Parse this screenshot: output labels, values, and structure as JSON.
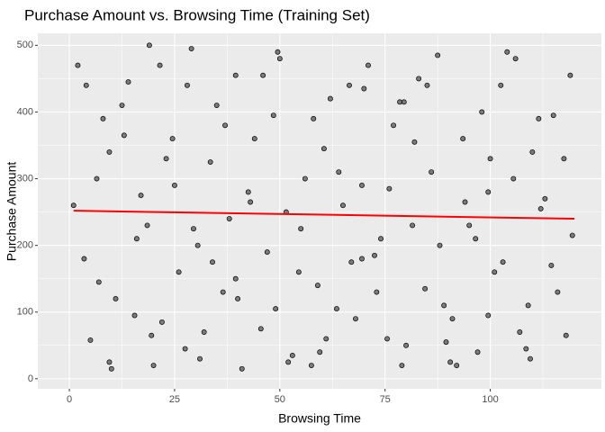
{
  "chart_data": {
    "type": "scatter",
    "title": "Purchase Amount vs. Browsing Time (Training Set)",
    "x_label": "Browsing Time",
    "y_label": "Purchase Amount",
    "xlim": [
      -7.5,
      126.4
    ],
    "ylim": [
      -15,
      518
    ],
    "xticks": [
      0,
      25,
      50,
      75,
      100
    ],
    "yticks": [
      0,
      100,
      200,
      300,
      400,
      500
    ],
    "grid": true,
    "series": [
      {
        "color": "#555555",
        "x": [
          2,
          5,
          8,
          11,
          14,
          17,
          20,
          23,
          26,
          29,
          32,
          35,
          38,
          41,
          44,
          47,
          50,
          53,
          56,
          59,
          62,
          65,
          68,
          71,
          74,
          77,
          80,
          83,
          86,
          89,
          92,
          95,
          98,
          101,
          104,
          107,
          110,
          113,
          116,
          119
        ],
        "values": [
          470,
          58,
          390,
          120,
          445,
          275,
          20,
          330,
          160,
          495,
          70,
          410,
          240,
          15,
          360,
          190,
          480,
          35,
          300,
          140,
          420,
          260,
          90,
          470,
          210,
          380,
          50,
          450,
          310,
          110,
          20,
          230,
          400,
          160,
          490,
          70,
          340,
          270,
          130,
          455
        ]
      },
      {
        "color": "#555555",
        "x": [
          3.5,
          6.5,
          9.5,
          12.5,
          15.5,
          18.5,
          21.5,
          24.5,
          27.5,
          30.5,
          33.5,
          36.5,
          39.5,
          42.5,
          45.5,
          48.5,
          51.5,
          54.5,
          57.5,
          60.5,
          63.5,
          66.5,
          69.5,
          72.5,
          75.5,
          78.5,
          81.5,
          84.5,
          87.5,
          90.5,
          93.5,
          96.5,
          99.5,
          102.5,
          105.5,
          108.5,
          111.5,
          114.5,
          117.5
        ],
        "values": [
          180,
          300,
          25,
          410,
          95,
          230,
          470,
          360,
          45,
          200,
          325,
          130,
          455,
          280,
          75,
          395,
          250,
          160,
          20,
          345,
          105,
          440,
          290,
          185,
          60,
          415,
          230,
          135,
          485,
          25,
          360,
          210,
          95,
          440,
          300,
          45,
          390,
          170,
          330
        ]
      },
      {
        "color": "#555555",
        "x": [
          1,
          4,
          7,
          10,
          13,
          16,
          19,
          22,
          25,
          28,
          31,
          34,
          37,
          40,
          43,
          46,
          49,
          52,
          55,
          58,
          61,
          64,
          67,
          70,
          73,
          76,
          79,
          82,
          85,
          88,
          91,
          94,
          97,
          100,
          103,
          106,
          109,
          112,
          115,
          118
        ],
        "values": [
          260,
          440,
          145,
          15,
          365,
          210,
          500,
          85,
          290,
          440,
          30,
          175,
          380,
          120,
          265,
          455,
          105,
          25,
          225,
          390,
          60,
          310,
          175,
          435,
          130,
          285,
          20,
          355,
          440,
          200,
          90,
          265,
          40,
          330,
          175,
          480,
          110,
          255,
          395,
          65
        ]
      },
      {
        "color": "#555555",
        "x": [
          9.5,
          19.5,
          29.5,
          39.5,
          49.5,
          59.5,
          69.5,
          79.5,
          89.5,
          99.5,
          109.5,
          119.5
        ],
        "values": [
          340,
          65,
          225,
          150,
          490,
          40,
          180,
          415,
          55,
          280,
          30,
          215
        ]
      }
    ],
    "trend": {
      "type": "line",
      "color": "#ff0000",
      "x": [
        1,
        120
      ],
      "values": [
        252,
        240
      ]
    }
  }
}
